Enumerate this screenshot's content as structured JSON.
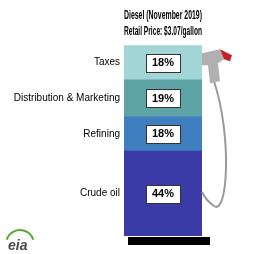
{
  "chart_data": {
    "type": "bar",
    "stacked": true,
    "title": "Diesel (November 2019)",
    "subtitle": "Retail Price: $3.07/gallon",
    "categories": [
      null
    ],
    "series": [
      {
        "name": "Crude oil",
        "color": "#3b3ba8",
        "values": [
          44
        ],
        "value_labels": [
          "44%"
        ]
      },
      {
        "name": "Refining",
        "color": "#3f7fbf",
        "values": [
          18
        ],
        "value_labels": [
          "18%"
        ]
      },
      {
        "name": "Distribution & Marketing",
        "color": "#5ea3a6",
        "values": [
          19
        ],
        "value_labels": [
          "19%"
        ]
      },
      {
        "name": "Taxes",
        "color": "#a2d5d6",
        "values": [
          18
        ],
        "value_labels": [
          "18%"
        ]
      }
    ],
    "data_labels": true,
    "tick_labels": false,
    "grid": false,
    "logo": "eia"
  }
}
